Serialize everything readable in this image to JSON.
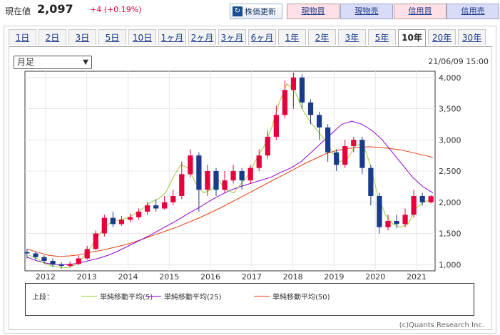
{
  "quote": {
    "label": "現在値",
    "price": "2,097",
    "change": "+4 (+0.19%)"
  },
  "buttons": {
    "refresh": "株価更新",
    "spot_buy": "現物買",
    "spot_sell": "現物売",
    "margin_buy": "信用買",
    "margin_sell": "信用売"
  },
  "tabs": [
    "1日",
    "2日",
    "3日",
    "5日",
    "10日",
    "1ヶ月",
    "2ヶ月",
    "3ヶ月",
    "6ヶ月",
    "1年",
    "2年",
    "3年",
    "5年",
    "10年",
    "20年",
    "30年"
  ],
  "active_tab": "10年",
  "period_select": "月足",
  "timestamp": "21/06/09 15:00",
  "legend": {
    "title": "上段：",
    "items": [
      "単純移動平均(5)",
      "単純移動平均(25)",
      "単純移動平均(50)"
    ]
  },
  "copyright": "(c)Quants Research Inc.",
  "colors": {
    "up": "#e8003c",
    "down": "#1a3a8a",
    "ma5": "#9acd32",
    "ma25": "#9400d3",
    "ma50": "#e04010"
  },
  "chart_data": {
    "type": "candlestick",
    "title": "",
    "x_ticks": [
      "2012",
      "2013",
      "2014",
      "2015",
      "2016",
      "2017",
      "2018",
      "2019",
      "2020",
      "2021"
    ],
    "y_ticks": [
      "1,000",
      "1,500",
      "2,000",
      "2,500",
      "3,000",
      "3,500",
      "4,000"
    ],
    "ylim": [
      900,
      4100
    ],
    "x_start": 2011.5,
    "x_end": 2021.45,
    "ma5": [
      1150,
      1100,
      1020,
      980,
      960,
      950,
      990,
      1100,
      1250,
      1450,
      1600,
      1700,
      1720,
      1750,
      1820,
      1900,
      2000,
      2050,
      2150,
      2400,
      2600,
      2550,
      2300,
      2150,
      2200,
      2350,
      2200,
      2150,
      2300,
      2450,
      2700,
      2900,
      3200,
      3600,
      3900,
      3800,
      3500,
      3300,
      3150,
      3000,
      2800,
      2650,
      2700,
      2900,
      2950,
      2600,
      2100,
      1800,
      1650,
      1600,
      1650,
      1900,
      2000,
      2050
    ],
    "ma25": [
      1120,
      1060,
      1020,
      1000,
      1000,
      1020,
      1060,
      1100,
      1150,
      1220,
      1300,
      1380,
      1460,
      1550,
      1640,
      1730,
      1830,
      1920,
      2020,
      2110,
      2190,
      2250,
      2300,
      2350,
      2400,
      2480,
      2550,
      2650,
      2800,
      2950,
      3100,
      3250,
      3300,
      3250,
      3150,
      3000,
      2800,
      2600,
      2400,
      2250,
      2150
    ],
    "ma50": [
      1250,
      1200,
      1150,
      1130,
      1140,
      1160,
      1200,
      1230,
      1270,
      1310,
      1360,
      1420,
      1480,
      1540,
      1600,
      1670,
      1740,
      1820,
      1900,
      1990,
      2080,
      2170,
      2260,
      2350,
      2440,
      2530,
      2620,
      2700,
      2780,
      2830,
      2860,
      2880,
      2890,
      2880,
      2860,
      2840,
      2800,
      2760,
      2720
    ],
    "candles": [
      [
        1200,
        1180,
        1250,
        1100
      ],
      [
        1180,
        1120,
        1210,
        1080
      ],
      [
        1120,
        1060,
        1150,
        1020
      ],
      [
        1060,
        1000,
        1100,
        960
      ],
      [
        1000,
        980,
        1040,
        940
      ],
      [
        980,
        1010,
        1050,
        950
      ],
      [
        1010,
        1100,
        1150,
        990
      ],
      [
        1100,
        1250,
        1300,
        1080
      ],
      [
        1250,
        1500,
        1550,
        1230
      ],
      [
        1500,
        1750,
        1800,
        1450
      ],
      [
        1750,
        1650,
        1850,
        1600
      ],
      [
        1650,
        1720,
        1780,
        1620
      ],
      [
        1720,
        1760,
        1820,
        1680
      ],
      [
        1760,
        1850,
        1900,
        1720
      ],
      [
        1850,
        1950,
        2000,
        1800
      ],
      [
        1950,
        1900,
        2050,
        1850
      ],
      [
        1900,
        2000,
        2100,
        1880
      ],
      [
        2000,
        2100,
        2200,
        1950
      ],
      [
        2100,
        2450,
        2650,
        2050
      ],
      [
        2450,
        2750,
        2850,
        2400
      ],
      [
        2750,
        2200,
        2800,
        1850
      ],
      [
        2200,
        2500,
        2600,
        2100
      ],
      [
        2500,
        2200,
        2550,
        2100
      ],
      [
        2200,
        2350,
        2500,
        2150
      ],
      [
        2350,
        2500,
        2600,
        2300
      ],
      [
        2500,
        2350,
        2550,
        2200
      ],
      [
        2350,
        2550,
        2600,
        2300
      ],
      [
        2550,
        2750,
        2850,
        2500
      ],
      [
        2750,
        3050,
        3150,
        2700
      ],
      [
        3050,
        3400,
        3550,
        3000
      ],
      [
        3400,
        3800,
        3950,
        3350
      ],
      [
        3800,
        4000,
        4080,
        3500
      ],
      [
        4000,
        3600,
        4050,
        3500
      ],
      [
        3600,
        3400,
        3650,
        3250
      ],
      [
        3400,
        3200,
        3450,
        3000
      ],
      [
        3200,
        2800,
        3250,
        2650
      ],
      [
        2800,
        2600,
        2850,
        2500
      ],
      [
        2600,
        2900,
        3000,
        2550
      ],
      [
        2900,
        3000,
        3050,
        2800
      ],
      [
        3000,
        2550,
        3050,
        2450
      ],
      [
        2550,
        2100,
        2600,
        1950
      ],
      [
        2100,
        1600,
        2150,
        1500
      ],
      [
        1600,
        1700,
        1800,
        1550
      ],
      [
        1700,
        1650,
        1800,
        1580
      ],
      [
        1650,
        1800,
        1900,
        1600
      ],
      [
        1800,
        2100,
        2200,
        1750
      ],
      [
        2100,
        2000,
        2150,
        1950
      ],
      [
        2000,
        2097,
        2120,
        1980
      ]
    ]
  }
}
